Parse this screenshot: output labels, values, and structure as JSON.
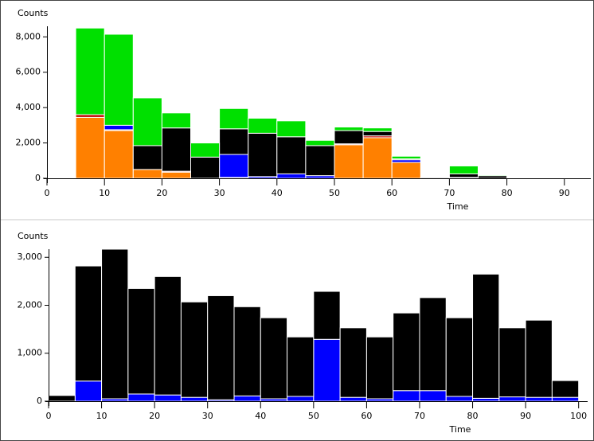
{
  "chart_data": [
    {
      "type": "histogram",
      "ylabel": "Counts",
      "xlabel": "Time",
      "bins": [
        5,
        10,
        15,
        20,
        25,
        30,
        35,
        40,
        45,
        50,
        55,
        60,
        65,
        70,
        75,
        80
      ],
      "series": [
        {
          "color": "#ff8000",
          "values": [
            3450,
            2700,
            500,
            350,
            0,
            50,
            0,
            0,
            0,
            1900,
            2300,
            900,
            0,
            0,
            0
          ]
        },
        {
          "color": "#c00000",
          "values": [
            150,
            50,
            0,
            50,
            0,
            0,
            0,
            0,
            0,
            50,
            100,
            0,
            0,
            0,
            0
          ]
        },
        {
          "color": "#0000ff",
          "values": [
            0,
            250,
            0,
            0,
            0,
            1300,
            100,
            250,
            150,
            0,
            0,
            150,
            0,
            50,
            0
          ]
        },
        {
          "color": "#000000",
          "values": [
            0,
            0,
            1350,
            2450,
            1200,
            1450,
            2450,
            2100,
            1700,
            750,
            250,
            50,
            50,
            200,
            150
          ]
        },
        {
          "color": "#00e000",
          "values": [
            4900,
            5150,
            2700,
            850,
            800,
            1150,
            850,
            900,
            300,
            200,
            200,
            150,
            0,
            450,
            50
          ]
        }
      ],
      "xlim": [
        0,
        94.6
      ],
      "xticks": [
        0,
        10,
        20,
        30,
        40,
        50,
        60,
        70,
        80,
        90
      ],
      "ylim": [
        0,
        8600
      ],
      "yticks": [
        0,
        {
          "value": 2000,
          "label": "2,000"
        },
        {
          "value": 4000,
          "label": "4,000"
        },
        {
          "value": 6000,
          "label": "6,000"
        },
        {
          "value": 8000,
          "label": "8,000"
        }
      ]
    },
    {
      "type": "histogram",
      "ylabel": "Counts",
      "xlabel": "Time",
      "bins": [
        0,
        5,
        10,
        15,
        20,
        25,
        30,
        35,
        40,
        45,
        50,
        55,
        60,
        65,
        70,
        75,
        80,
        85,
        90,
        95,
        100
      ],
      "series": [
        {
          "color": "#0000ff",
          "values": [
            0,
            420,
            50,
            150,
            130,
            80,
            30,
            110,
            50,
            100,
            1290,
            80,
            50,
            220,
            220,
            100,
            60,
            90,
            80,
            80
          ]
        },
        {
          "color": "#000000",
          "values": [
            120,
            2400,
            3120,
            2200,
            2470,
            1990,
            2170,
            1860,
            1690,
            1240,
            1000,
            1450,
            1290,
            1620,
            1940,
            1640,
            2590,
            1440,
            1610,
            350
          ]
        }
      ],
      "xlim": [
        0,
        101.7
      ],
      "xticks": [
        0,
        10,
        20,
        30,
        40,
        50,
        60,
        70,
        80,
        90,
        100
      ],
      "ylim": [
        0,
        3170
      ],
      "yticks": [
        0,
        {
          "value": 1000,
          "label": "1,000"
        },
        {
          "value": 2000,
          "label": "2,000"
        },
        {
          "value": 3000,
          "label": "3,000"
        }
      ]
    }
  ]
}
